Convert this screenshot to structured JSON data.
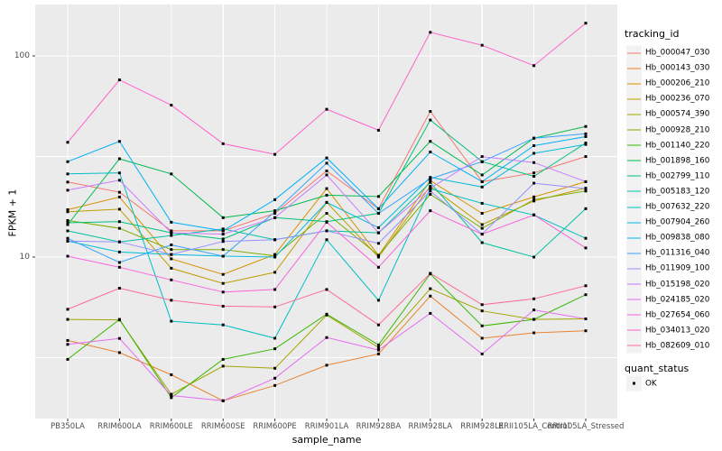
{
  "chart": {
    "y_axis_title": "FPKM + 1",
    "x_axis_title": "sample_name",
    "legend": {
      "tracking_title": "tracking_id",
      "quant_title": "quant_status",
      "quant_ok_label": "OK"
    }
  },
  "chart_data": {
    "type": "line",
    "title": "",
    "xlabel": "sample_name",
    "ylabel": "FPKM + 1",
    "y_scale": "log10",
    "ylim": [
      1.55,
      175
    ],
    "y_ticks": [
      10,
      100
    ],
    "y_minor_gridlines": [
      3.162,
      31.62
    ],
    "grid": true,
    "legend_position": "right",
    "point_marker": "black-square",
    "quant_status": [
      {
        "label": "OK",
        "marker": "black-square"
      }
    ],
    "categories": [
      "PB350LA",
      "RRIM600LA",
      "RRIM600LE",
      "RRIM600SE",
      "RRIM600PE",
      "RRIM901LA",
      "RRIM928BA",
      "RRIM928LA",
      "RRIM928LE",
      "RRII105LA_Control",
      "RRII105LA_Stressed"
    ],
    "series": [
      {
        "name": "Hb_000047_030",
        "color": "#F8766D",
        "values": [
          23.6,
          21.0,
          13.5,
          13.5,
          16.5,
          26.8,
          17.4,
          53.0,
          23.7,
          26.2,
          31.6
        ]
      },
      {
        "name": "Hb_000143_030",
        "color": "#EA8331",
        "values": [
          3.85,
          3.35,
          2.6,
          1.93,
          2.3,
          2.9,
          3.3,
          6.4,
          3.95,
          4.2,
          4.3
        ]
      },
      {
        "name": "Hb_000206_210",
        "color": "#D89000",
        "values": [
          17.2,
          19.9,
          9.8,
          8.2,
          10.3,
          21.9,
          10.2,
          24.0,
          16.5,
          19.9,
          23.7
        ]
      },
      {
        "name": "Hb_000236_070",
        "color": "#C09B00",
        "values": [
          16.8,
          17.3,
          8.8,
          7.4,
          8.4,
          18.7,
          10.0,
          22.5,
          14.5,
          19.0,
          22.0
        ]
      },
      {
        "name": "Hb_000574_390",
        "color": "#A3A500",
        "values": [
          4.9,
          4.87,
          2.08,
          2.87,
          2.8,
          5.15,
          3.55,
          6.96,
          5.4,
          4.9,
          4.93
        ]
      },
      {
        "name": "Hb_000928_210",
        "color": "#7CAE00",
        "values": [
          15.2,
          13.9,
          10.9,
          10.9,
          10.15,
          16.5,
          10.2,
          20.5,
          13.9,
          19.3,
          21.3
        ]
      },
      {
        "name": "Hb_001140_220",
        "color": "#39B600",
        "values": [
          3.1,
          4.9,
          2.0,
          3.1,
          3.5,
          5.2,
          3.66,
          8.25,
          4.55,
          4.9,
          6.5
        ]
      },
      {
        "name": "Hb_001898_160",
        "color": "#00BB4E",
        "values": [
          14.5,
          30.8,
          25.9,
          15.7,
          17.0,
          20.3,
          20.0,
          37.6,
          25.6,
          39.0,
          44.6
        ]
      },
      {
        "name": "Hb_002799_110",
        "color": "#00BF7D",
        "values": [
          14.8,
          15.0,
          13.2,
          12.3,
          15.7,
          15.0,
          16.5,
          48.0,
          29.8,
          25.2,
          36.9
        ]
      },
      {
        "name": "Hb_005183_120",
        "color": "#00C1A3",
        "values": [
          13.5,
          11.9,
          12.8,
          13.8,
          12.2,
          13.5,
          13.2,
          23.5,
          11.8,
          10.0,
          17.4
        ]
      },
      {
        "name": "Hb_007632_220",
        "color": "#00BFC4",
        "values": [
          25.9,
          26.2,
          4.8,
          4.6,
          3.95,
          12.2,
          6.1,
          21.9,
          18.5,
          16.2,
          12.4
        ]
      },
      {
        "name": "Hb_007904_260",
        "color": "#00BBDA",
        "values": [
          12.0,
          10.6,
          10.3,
          10.1,
          10.0,
          18.7,
          14.0,
          24.9,
          22.3,
          32.8,
          36.3
        ]
      },
      {
        "name": "Hb_009838_080",
        "color": "#00B0F6",
        "values": [
          29.8,
          37.6,
          14.9,
          13.5,
          19.3,
          31.1,
          17.4,
          33.3,
          23.7,
          35.8,
          39.7
        ]
      },
      {
        "name": "Hb_011316_040",
        "color": "#35A2FF",
        "values": [
          12.4,
          9.4,
          11.5,
          10.1,
          16.8,
          29.3,
          16.5,
          24.5,
          29.8,
          39.0,
          41.0
        ]
      },
      {
        "name": "Hb_011909_100",
        "color": "#9590FF",
        "values": [
          12.0,
          11.9,
          10.3,
          11.95,
          12.2,
          13.5,
          11.7,
          21.3,
          13.0,
          23.3,
          21.9
        ]
      },
      {
        "name": "Hb_015198_020",
        "color": "#C77CFF",
        "values": [
          21.5,
          24.1,
          13.2,
          13.0,
          15.7,
          25.6,
          13.2,
          22.0,
          31.6,
          29.5,
          23.7
        ]
      },
      {
        "name": "Hb_024185_020",
        "color": "#E76BF3",
        "values": [
          3.68,
          3.94,
          2.05,
          1.93,
          2.5,
          3.98,
          3.45,
          5.25,
          3.3,
          5.46,
          4.93
        ]
      },
      {
        "name": "Hb_027654_060",
        "color": "#FA62DB",
        "values": [
          10.1,
          8.9,
          7.7,
          6.7,
          6.9,
          14.9,
          8.9,
          17.0,
          13.0,
          16.2,
          11.1
        ]
      },
      {
        "name": "Hb_034013_020",
        "color": "#FF61CC",
        "values": [
          37.2,
          76.0,
          56.9,
          36.6,
          32.4,
          54.3,
          42.7,
          131.0,
          113.0,
          89.5,
          145.5
        ]
      },
      {
        "name": "Hb_082609_010",
        "color": "#FF6A98",
        "values": [
          5.5,
          7.0,
          6.1,
          5.7,
          5.65,
          6.9,
          4.6,
          8.3,
          5.8,
          6.2,
          7.2
        ]
      }
    ]
  },
  "colors": {
    "background": "#FFFFFF",
    "panel_bg": "#EBEBEB",
    "gridline": "#FFFFFF",
    "axis_text": "#4D4D4D",
    "tick_mark": "#333333",
    "legend_key_bg": "#F2F2F2",
    "point": "#000000"
  }
}
